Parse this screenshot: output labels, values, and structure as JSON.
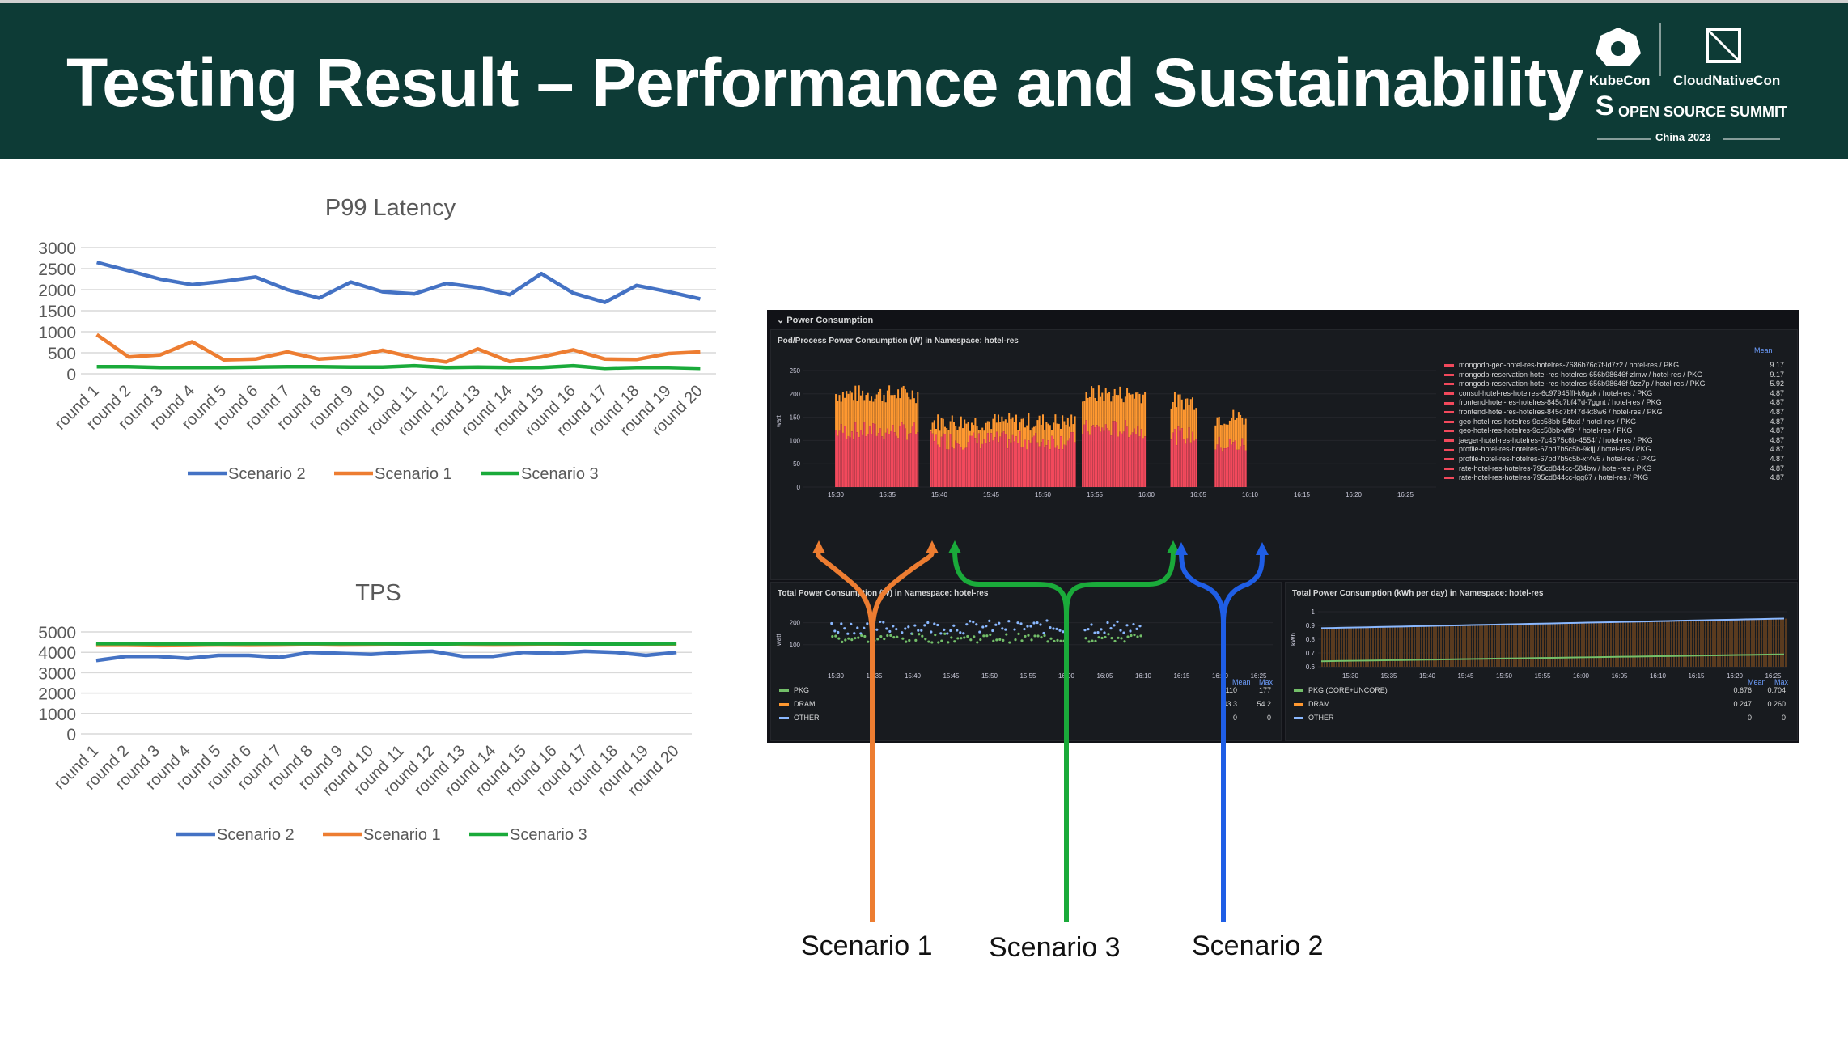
{
  "slide": {
    "title": "Testing Result – Performance and Sustainability",
    "logo": {
      "left": "KubeCon",
      "right": "CloudNativeCon",
      "subtitle": "OPEN SOURCE SUMMIT",
      "event": "China 2023"
    }
  },
  "colors": {
    "header": "#0d3b36",
    "scenario2": "#4472c4",
    "scenario1": "#ed7d31",
    "scenario3": "#1aaa3a"
  },
  "chart_data": [
    {
      "type": "line",
      "title": "P99 Latency",
      "categories": [
        "round 1",
        "round 2",
        "round 3",
        "round 4",
        "round 5",
        "round 6",
        "round 7",
        "round 8",
        "round 9",
        "round 10",
        "round 11",
        "round 12",
        "round 13",
        "round 14",
        "round 15",
        "round 16",
        "round 17",
        "round 18",
        "round 19",
        "round 20"
      ],
      "yticks": [
        "3000",
        "2500",
        "2000",
        "1500",
        "1000",
        "500",
        "0"
      ],
      "ylim": [
        0,
        3000
      ],
      "series": [
        {
          "name": "Scenario 2",
          "color": "#4472c4",
          "values": [
            2650,
            2450,
            2250,
            2120,
            2200,
            2300,
            2000,
            1800,
            2180,
            1950,
            1900,
            2150,
            2050,
            1880,
            2380,
            1920,
            1700,
            2100,
            1950,
            1780
          ]
        },
        {
          "name": "Scenario 1",
          "color": "#ed7d31",
          "values": [
            930,
            400,
            450,
            760,
            330,
            350,
            520,
            350,
            400,
            560,
            380,
            280,
            590,
            290,
            400,
            570,
            350,
            340,
            480,
            520
          ]
        },
        {
          "name": "Scenario 3",
          "color": "#1aaa3a",
          "values": [
            170,
            170,
            150,
            150,
            150,
            160,
            170,
            170,
            160,
            160,
            190,
            150,
            160,
            150,
            150,
            190,
            130,
            150,
            150,
            130
          ]
        }
      ],
      "legend": [
        "Scenario 2",
        "Scenario 1",
        "Scenario 3"
      ]
    },
    {
      "type": "line",
      "title": "TPS",
      "categories": [
        "round 1",
        "round 2",
        "round 3",
        "round 4",
        "round 5",
        "round 6",
        "round 7",
        "round 8",
        "round 9",
        "round 10",
        "round 11",
        "round 12",
        "round 13",
        "round 14",
        "round 15",
        "round 16",
        "round 17",
        "round 18",
        "round 19",
        "round 20"
      ],
      "yticks": [
        "5000",
        "4000",
        "3000",
        "2000",
        "1000",
        "0"
      ],
      "ylim": [
        0,
        5000
      ],
      "series": [
        {
          "name": "Scenario 2",
          "color": "#4472c4",
          "values": [
            3600,
            3800,
            3800,
            3700,
            3850,
            3850,
            3750,
            4000,
            3950,
            3900,
            4000,
            4050,
            3800,
            3800,
            4000,
            3950,
            4050,
            4000,
            3850,
            4000
          ]
        },
        {
          "name": "Scenario 1",
          "color": "#ed7d31",
          "values": [
            4350,
            4350,
            4330,
            4340,
            4360,
            4350,
            4360,
            4380,
            4360,
            4370,
            4380,
            4400,
            4370,
            4360,
            4370,
            4380,
            4380,
            4390,
            4400,
            4400
          ]
        },
        {
          "name": "Scenario 3",
          "color": "#1aaa3a",
          "values": [
            4430,
            4430,
            4420,
            4420,
            4420,
            4430,
            4430,
            4430,
            4430,
            4430,
            4420,
            4400,
            4430,
            4430,
            4430,
            4430,
            4410,
            4400,
            4420,
            4430
          ]
        }
      ],
      "legend": [
        "Scenario 2",
        "Scenario 1",
        "Scenario 3"
      ]
    }
  ],
  "dashboard": {
    "section_title": "⌄ Power Consumption",
    "top_panel": {
      "title": "Pod/Process Power Consumption (W) in Namespace: hotel-res",
      "ylabel": "watt",
      "yticks": [
        "250",
        "200",
        "150",
        "100",
        "50",
        "0"
      ],
      "xticks": [
        "15:30",
        "15:35",
        "15:40",
        "15:45",
        "15:50",
        "15:55",
        "16:00",
        "16:05",
        "16:10",
        "16:15",
        "16:20",
        "16:25"
      ],
      "legend_header": "Mean",
      "legend": [
        {
          "name": "mongodb-geo-hotel-res-hotelres-7686b76c7f-ld7z2 / hotel-res / PKG",
          "mean": "9.17"
        },
        {
          "name": "mongodb-reservation-hotel-res-hotelres-656b98646f-zlmw / hotel-res / PKG",
          "mean": "9.17"
        },
        {
          "name": "mongodb-reservation-hotel-res-hotelres-656b98646f-9zz7p / hotel-res / PKG",
          "mean": "5.92"
        },
        {
          "name": "consul-hotel-res-hotelres-6c97945fff-k6gzk / hotel-res / PKG",
          "mean": "4.87"
        },
        {
          "name": "frontend-hotel-res-hotelres-845c7bf47d-7ggnt / hotel-res / PKG",
          "mean": "4.87"
        },
        {
          "name": "frontend-hotel-res-hotelres-845c7bf47d-kt8w6 / hotel-res / PKG",
          "mean": "4.87"
        },
        {
          "name": "geo-hotel-res-hotelres-9cc58bb-54txd / hotel-res / PKG",
          "mean": "4.87"
        },
        {
          "name": "geo-hotel-res-hotelres-9cc58bb-vff9r / hotel-res / PKG",
          "mean": "4.87"
        },
        {
          "name": "jaeger-hotel-res-hotelres-7c4575c6b-4554f / hotel-res / PKG",
          "mean": "4.87"
        },
        {
          "name": "profile-hotel-res-hotelres-67bd7b5c5b-9kljj / hotel-res / PKG",
          "mean": "4.87"
        },
        {
          "name": "profile-hotel-res-hotelres-67bd7b5c5b-xr4v5 / hotel-res / PKG",
          "mean": "4.87"
        },
        {
          "name": "rate-hotel-res-hotelres-795cd844cc-584bw / hotel-res / PKG",
          "mean": "4.87"
        },
        {
          "name": "rate-hotel-res-hotelres-795cd844cc-lgg67 / hotel-res / PKG",
          "mean": "4.87"
        }
      ]
    },
    "bottom_left": {
      "title": "Total Power Consumption (W) in Namespace: hotel-res",
      "ylabel": "watt",
      "yticks": [
        "200",
        "100"
      ],
      "xticks": [
        "15:30",
        "15:35",
        "15:40",
        "15:45",
        "15:50",
        "15:55",
        "16:00",
        "16:05",
        "16:10",
        "16:15",
        "16:20",
        "16:25"
      ],
      "col_mean": "Mean",
      "col_max": "Max",
      "rows": [
        {
          "name": "PKG",
          "mean": "110",
          "max": "177",
          "color": "#73bf69"
        },
        {
          "name": "DRAM",
          "mean": "43.3",
          "max": "54.2",
          "color": "#ff9830"
        },
        {
          "name": "OTHER",
          "mean": "0",
          "max": "0",
          "color": "#8ab8ff"
        }
      ]
    },
    "bottom_right": {
      "title": "Total Power Consumption (kWh per day) in Namespace: hotel-res",
      "ylabel": "kWh",
      "yticks": [
        "1",
        "0.9",
        "0.8",
        "0.7",
        "0.6"
      ],
      "xticks": [
        "15:30",
        "15:35",
        "15:40",
        "15:45",
        "15:50",
        "15:55",
        "16:00",
        "16:05",
        "16:10",
        "16:15",
        "16:20",
        "16:25"
      ],
      "col_mean": "Mean",
      "col_max": "Max",
      "rows": [
        {
          "name": "PKG (CORE+UNCORE)",
          "mean": "0.676",
          "max": "0.704",
          "color": "#73bf69"
        },
        {
          "name": "DRAM",
          "mean": "0.247",
          "max": "0.260",
          "color": "#ff9830"
        },
        {
          "name": "OTHER",
          "mean": "0",
          "max": "0",
          "color": "#8ab8ff"
        }
      ]
    }
  },
  "annotations": {
    "scenario1": "Scenario 1",
    "scenario3": "Scenario 3",
    "scenario2": "Scenario 2"
  }
}
